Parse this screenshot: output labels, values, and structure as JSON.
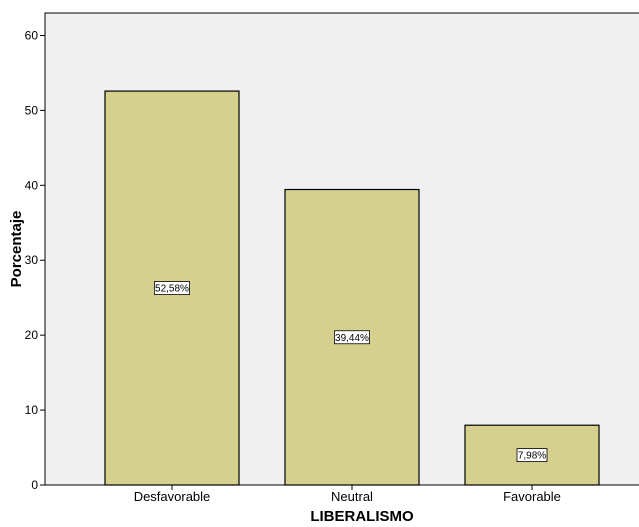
{
  "chart_data": {
    "type": "bar",
    "categories": [
      "Desfavorable",
      "Neutral",
      "Favorable"
    ],
    "values": [
      52.58,
      39.44,
      7.98
    ],
    "data_labels": [
      "52,58%",
      "39,44%",
      "7,98%"
    ],
    "xlabel": "LIBERALISMO",
    "ylabel": "Porcentaje",
    "ylim": [
      0,
      63
    ],
    "yticks": [
      0,
      10,
      20,
      30,
      40,
      50,
      60
    ],
    "grid": false,
    "colors": {
      "plot_background": "#f0f0f0",
      "bar_fill": "#d6d08e",
      "bar_stroke": "#000000",
      "label_box": "#ffffff"
    }
  }
}
